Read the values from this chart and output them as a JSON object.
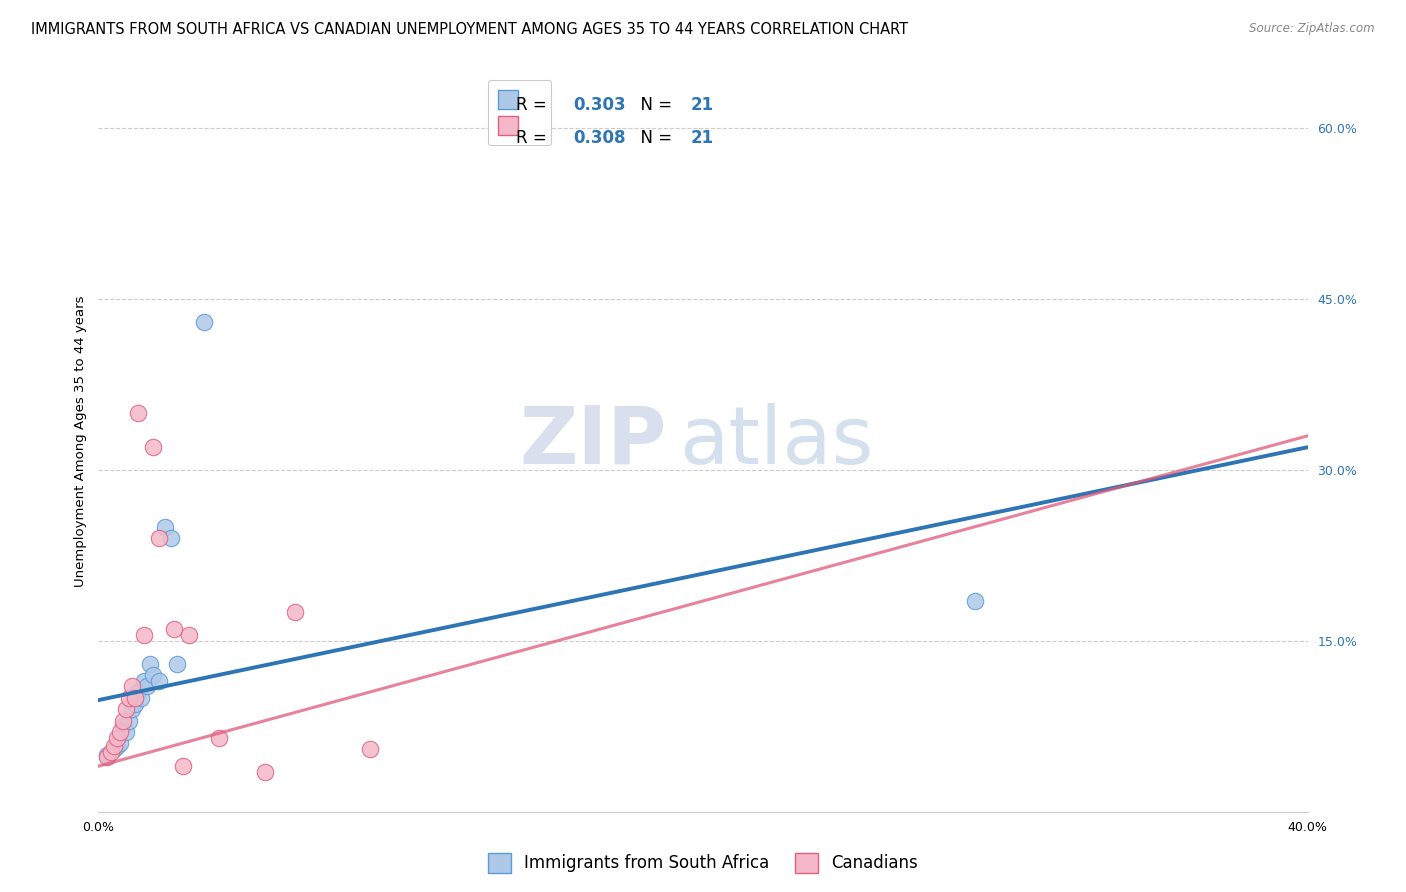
{
  "title": "IMMIGRANTS FROM SOUTH AFRICA VS CANADIAN UNEMPLOYMENT AMONG AGES 35 TO 44 YEARS CORRELATION CHART",
  "source": "Source: ZipAtlas.com",
  "ylabel": "Unemployment Among Ages 35 to 44 years",
  "xlim": [
    0.0,
    0.4
  ],
  "ylim": [
    0.0,
    0.65
  ],
  "xticks": [
    0.0,
    0.05,
    0.1,
    0.15,
    0.2,
    0.25,
    0.3,
    0.35,
    0.4
  ],
  "xticklabels": [
    "0.0%",
    "",
    "",
    "",
    "",
    "",
    "",
    "",
    "40.0%"
  ],
  "right_yticks": [
    0.0,
    0.15,
    0.3,
    0.45,
    0.6
  ],
  "right_yticklabels": [
    "",
    "15.0%",
    "30.0%",
    "45.0%",
    "60.0%"
  ],
  "legend_r1_r": "R = ",
  "legend_r1_val": "0.303",
  "legend_r1_n": "  N = ",
  "legend_r1_nval": "21",
  "legend_r2_r": "R = ",
  "legend_r2_val": "0.308",
  "legend_r2_n": "  N = ",
  "legend_r2_nval": "21",
  "blue_scatter_color": "#aec8e8",
  "blue_edge_color": "#5b9bd5",
  "blue_line_color": "#2e75b6",
  "pink_scatter_color": "#f4b8c8",
  "pink_edge_color": "#e06080",
  "pink_line_color": "#e05878",
  "watermark_zip": "ZIP",
  "watermark_atlas": "atlas",
  "blue_scatter_x": [
    0.003,
    0.005,
    0.006,
    0.007,
    0.008,
    0.009,
    0.01,
    0.011,
    0.012,
    0.013,
    0.014,
    0.015,
    0.016,
    0.017,
    0.018,
    0.02,
    0.022,
    0.024,
    0.026,
    0.035,
    0.29
  ],
  "blue_scatter_y": [
    0.05,
    0.055,
    0.058,
    0.06,
    0.075,
    0.07,
    0.08,
    0.09,
    0.095,
    0.105,
    0.1,
    0.115,
    0.11,
    0.13,
    0.12,
    0.115,
    0.25,
    0.24,
    0.13,
    0.43,
    0.185
  ],
  "pink_scatter_x": [
    0.003,
    0.004,
    0.005,
    0.006,
    0.007,
    0.008,
    0.009,
    0.01,
    0.011,
    0.012,
    0.013,
    0.015,
    0.018,
    0.02,
    0.025,
    0.028,
    0.03,
    0.04,
    0.055,
    0.065,
    0.09
  ],
  "pink_scatter_y": [
    0.048,
    0.052,
    0.058,
    0.065,
    0.07,
    0.08,
    0.09,
    0.1,
    0.11,
    0.1,
    0.35,
    0.155,
    0.32,
    0.24,
    0.16,
    0.04,
    0.155,
    0.065,
    0.035,
    0.175,
    0.055
  ],
  "blue_line_x0": 0.0,
  "blue_line_y0": 0.098,
  "blue_line_x1": 0.4,
  "blue_line_y1": 0.32,
  "pink_line_x0": 0.0,
  "pink_line_y0": 0.04,
  "pink_line_x1": 0.4,
  "pink_line_y1": 0.33,
  "gridline_color": "#cccccc",
  "background_color": "#ffffff",
  "title_fontsize": 10.5,
  "axis_label_fontsize": 9.5,
  "tick_fontsize": 9,
  "legend_fontsize": 12
}
